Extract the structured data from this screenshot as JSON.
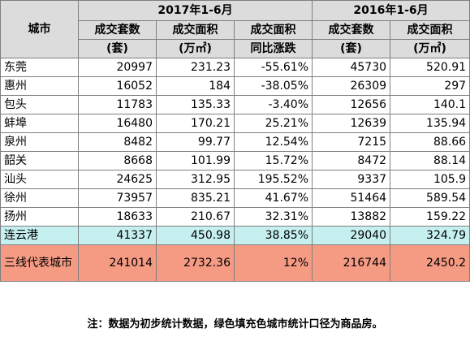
{
  "header": {
    "city": "城市",
    "group_2017": "2017年1-6月",
    "group_2016": "2016年1-6月",
    "col_units": "成交套数",
    "col_area": "成交面积",
    "col_yoy": "成交面积",
    "unit_units": "(套)",
    "unit_area": "(万㎡)",
    "unit_yoy": "同比涨跌"
  },
  "rows": [
    {
      "city": "东莞",
      "u2017": "20997",
      "a2017": "231.23",
      "yoy": "-55.61%",
      "u2016": "45730",
      "a2016": "520.91",
      "fill": "#ffffff"
    },
    {
      "city": "惠州",
      "u2017": "16052",
      "a2017": "184",
      "yoy": "-38.05%",
      "u2016": "26309",
      "a2016": "297",
      "fill": "#ffffff"
    },
    {
      "city": "包头",
      "u2017": "11783",
      "a2017": "135.33",
      "yoy": "-3.40%",
      "u2016": "12656",
      "a2016": "140.1",
      "fill": "#ffffff"
    },
    {
      "city": "蚌埠",
      "u2017": "16480",
      "a2017": "170.21",
      "yoy": "25.21%",
      "u2016": "12639",
      "a2016": "135.94",
      "fill": "#ffffff"
    },
    {
      "city": "泉州",
      "u2017": "8482",
      "a2017": "99.77",
      "yoy": "12.54%",
      "u2016": "7215",
      "a2016": "88.66",
      "fill": "#ffffff"
    },
    {
      "city": "韶关",
      "u2017": "8668",
      "a2017": "101.99",
      "yoy": "15.72%",
      "u2016": "8472",
      "a2016": "88.14",
      "fill": "#ffffff"
    },
    {
      "city": "汕头",
      "u2017": "24625",
      "a2017": "312.95",
      "yoy": "195.52%",
      "u2016": "9337",
      "a2016": "105.9",
      "fill": "#ffffff"
    },
    {
      "city": "徐州",
      "u2017": "73957",
      "a2017": "835.21",
      "yoy": "41.67%",
      "u2016": "51464",
      "a2016": "589.54",
      "fill": "#ffffff"
    },
    {
      "city": "扬州",
      "u2017": "18633",
      "a2017": "210.67",
      "yoy": "32.31%",
      "u2016": "13882",
      "a2016": "159.22",
      "fill": "#ffffff"
    },
    {
      "city": "连云港",
      "u2017": "41337",
      "a2017": "450.98",
      "yoy": "38.85%",
      "u2016": "29040",
      "a2016": "324.79",
      "fill": "#c6eff0"
    },
    {
      "city": "三线代表城市",
      "u2017": "241014",
      "a2017": "2732.36",
      "yoy": "12%",
      "u2016": "216744",
      "a2016": "2450.2",
      "fill": "#f59a83"
    }
  ],
  "colors": {
    "header_fill": "#dcdcdc",
    "border": "#7f7f7f"
  },
  "note": "注：数据为初步统计数据，绿色填充色城市统计口径为商品房。"
}
